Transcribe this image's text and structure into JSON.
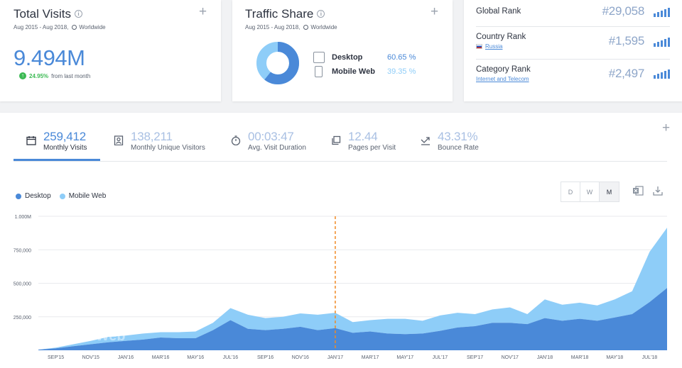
{
  "total_visits": {
    "title": "Total Visits",
    "date_range": "Aug 2015 - Aug 2018,",
    "region": "Worldwide",
    "value": "9.494M",
    "change_pct": "24.95%",
    "change_text": "from last month"
  },
  "traffic_share": {
    "title": "Traffic Share",
    "date_range": "Aug 2015 - Aug 2018,",
    "region": "Worldwide",
    "rows": [
      {
        "label": "Desktop",
        "pct": "60.65 %",
        "color": "#4a89d8",
        "value": 60.65
      },
      {
        "label": "Mobile Web",
        "pct": "39.35 %",
        "color": "#8ecdf8",
        "value": 39.35
      }
    ]
  },
  "ranks": [
    {
      "label": "Global Rank",
      "sub": "",
      "value": "#29,058"
    },
    {
      "label": "Country Rank",
      "sub": "Russia",
      "value": "#1,595"
    },
    {
      "label": "Category Rank",
      "sub": "Internet and Telecom",
      "value": "#2,497"
    }
  ],
  "tabs": [
    {
      "value": "259,412",
      "label": "Monthly Visits",
      "icon": "calendar-icon"
    },
    {
      "value": "138,211",
      "label": "Monthly Unique Visitors",
      "icon": "user-card-icon"
    },
    {
      "value": "00:03:47",
      "label": "Avg. Visit Duration",
      "icon": "stopwatch-icon"
    },
    {
      "value": "12.44",
      "label": "Pages per Visit",
      "icon": "pages-icon"
    },
    {
      "value": "43.31%",
      "label": "Bounce Rate",
      "icon": "bounce-icon"
    }
  ],
  "legend": [
    {
      "label": "Desktop",
      "color": "#4a89d8"
    },
    {
      "label": "Mobile Web",
      "color": "#8ecdf8"
    }
  ],
  "period_buttons": [
    "D",
    "W",
    "M"
  ],
  "watermark": "SimilarWeb",
  "chart_data": {
    "type": "area",
    "stacked": true,
    "title": "",
    "xlabel": "",
    "ylabel": "",
    "ylim": [
      0,
      1000000
    ],
    "y_ticks": [
      "250,000",
      "500,000",
      "750,000",
      "1.000M"
    ],
    "y_tick_values": [
      250000,
      500000,
      750000,
      1000000
    ],
    "x_tick_labels": [
      "SEP'15",
      "NOV'15",
      "JAN'16",
      "MAR'16",
      "MAY'16",
      "JUL'16",
      "SEP'16",
      "NOV'16",
      "JAN'17",
      "MAR'17",
      "MAY'17",
      "JUL'17",
      "SEP'17",
      "NOV'17",
      "JAN'18",
      "MAR'18",
      "MAY'18",
      "JUL'18"
    ],
    "x": [
      "Aug'15",
      "Sep'15",
      "Oct'15",
      "Nov'15",
      "Dec'15",
      "Jan'16",
      "Feb'16",
      "Mar'16",
      "Apr'16",
      "May'16",
      "Jun'16",
      "Jul'16",
      "Aug'16",
      "Sep'16",
      "Oct'16",
      "Nov'16",
      "Dec'16",
      "Jan'17",
      "Feb'17",
      "Mar'17",
      "Apr'17",
      "May'17",
      "Jun'17",
      "Jul'17",
      "Aug'17",
      "Sep'17",
      "Oct'17",
      "Nov'17",
      "Dec'17",
      "Jan'18",
      "Feb'18",
      "Mar'18",
      "Apr'18",
      "May'18",
      "Jun'18",
      "Jul'18",
      "Aug'18"
    ],
    "series": [
      {
        "name": "Desktop",
        "color": "#4a89d8",
        "values": [
          5000,
          15000,
          30000,
          45000,
          60000,
          70000,
          80000,
          95000,
          90000,
          90000,
          150000,
          225000,
          160000,
          150000,
          160000,
          175000,
          150000,
          165000,
          130000,
          140000,
          125000,
          120000,
          125000,
          145000,
          170000,
          180000,
          205000,
          205000,
          195000,
          240000,
          220000,
          235000,
          220000,
          245000,
          270000,
          360000,
          465000
        ]
      },
      {
        "name": "Mobile Web",
        "color": "#8ecdf8",
        "values": [
          0,
          5000,
          15000,
          25000,
          40000,
          40000,
          45000,
          40000,
          45000,
          50000,
          55000,
          90000,
          105000,
          90000,
          90000,
          100000,
          115000,
          115000,
          80000,
          85000,
          110000,
          115000,
          95000,
          115000,
          110000,
          90000,
          100000,
          115000,
          75000,
          140000,
          120000,
          120000,
          115000,
          135000,
          170000,
          375000,
          450000
        ]
      }
    ],
    "annotation_x": "Jan'17"
  }
}
